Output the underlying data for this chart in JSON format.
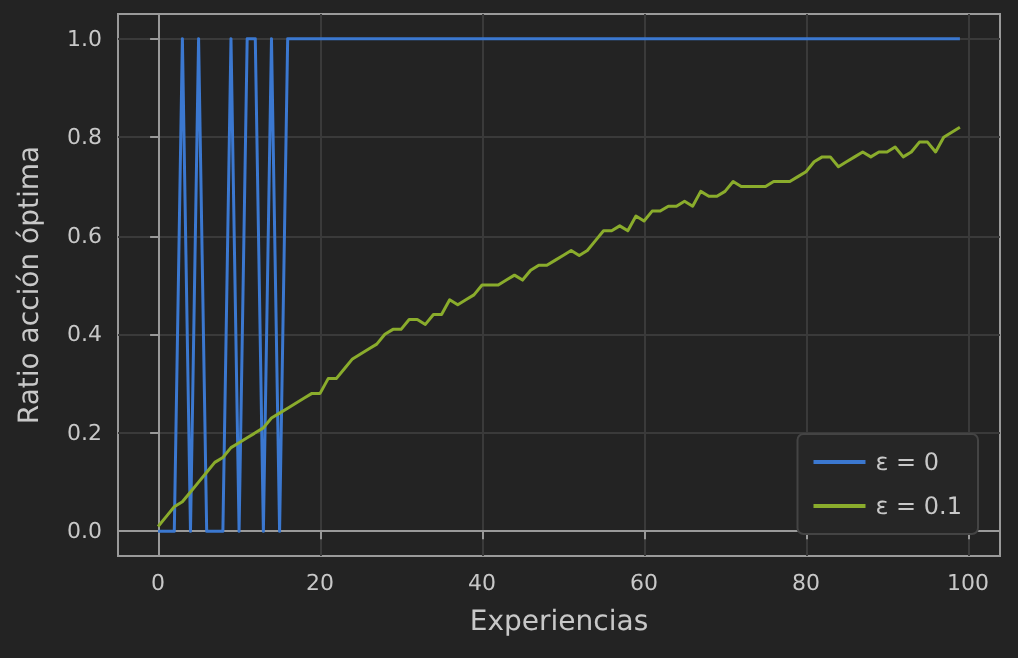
{
  "chart_data": {
    "type": "line",
    "xlabel": "Experiencias",
    "ylabel": "Ratio acción óptima",
    "x": [
      0,
      1,
      2,
      3,
      4,
      5,
      6,
      7,
      8,
      9,
      10,
      11,
      12,
      13,
      14,
      15,
      16,
      17,
      18,
      19,
      20,
      21,
      22,
      23,
      24,
      25,
      26,
      27,
      28,
      29,
      30,
      31,
      32,
      33,
      34,
      35,
      36,
      37,
      38,
      39,
      40,
      41,
      42,
      43,
      44,
      45,
      46,
      47,
      48,
      49,
      50,
      51,
      52,
      53,
      54,
      55,
      56,
      57,
      58,
      59,
      60,
      61,
      62,
      63,
      64,
      65,
      66,
      67,
      68,
      69,
      70,
      71,
      72,
      73,
      74,
      75,
      76,
      77,
      78,
      79,
      80,
      81,
      82,
      83,
      84,
      85,
      86,
      87,
      88,
      89,
      90,
      91,
      92,
      93,
      94,
      95,
      96,
      97,
      98,
      99
    ],
    "series": [
      {
        "name": "ε = 0",
        "color": "#3b78d0",
        "values": [
          0,
          0,
          0,
          1,
          0,
          1,
          0,
          0,
          0,
          1,
          0,
          1,
          1,
          0,
          1,
          0,
          1,
          1,
          1,
          1,
          1,
          1,
          1,
          1,
          1,
          1,
          1,
          1,
          1,
          1,
          1,
          1,
          1,
          1,
          1,
          1,
          1,
          1,
          1,
          1,
          1,
          1,
          1,
          1,
          1,
          1,
          1,
          1,
          1,
          1,
          1,
          1,
          1,
          1,
          1,
          1,
          1,
          1,
          1,
          1,
          1,
          1,
          1,
          1,
          1,
          1,
          1,
          1,
          1,
          1,
          1,
          1,
          1,
          1,
          1,
          1,
          1,
          1,
          1,
          1,
          1,
          1,
          1,
          1,
          1,
          1,
          1,
          1,
          1,
          1,
          1,
          1,
          1,
          1,
          1,
          1,
          1,
          1,
          1,
          1
        ]
      },
      {
        "name": "ε = 0.1",
        "color": "#8aac2c",
        "values": [
          0.01,
          0.03,
          0.05,
          0.06,
          0.08,
          0.1,
          0.12,
          0.14,
          0.15,
          0.17,
          0.18,
          0.19,
          0.2,
          0.21,
          0.23,
          0.24,
          0.25,
          0.26,
          0.27,
          0.28,
          0.28,
          0.31,
          0.31,
          0.33,
          0.35,
          0.36,
          0.37,
          0.38,
          0.4,
          0.41,
          0.41,
          0.43,
          0.43,
          0.42,
          0.44,
          0.44,
          0.47,
          0.46,
          0.47,
          0.48,
          0.5,
          0.5,
          0.5,
          0.51,
          0.52,
          0.51,
          0.53,
          0.54,
          0.54,
          0.55,
          0.56,
          0.57,
          0.56,
          0.57,
          0.59,
          0.61,
          0.61,
          0.62,
          0.61,
          0.64,
          0.63,
          0.65,
          0.65,
          0.66,
          0.66,
          0.67,
          0.66,
          0.69,
          0.68,
          0.68,
          0.69,
          0.71,
          0.7,
          0.7,
          0.7,
          0.7,
          0.71,
          0.71,
          0.71,
          0.72,
          0.73,
          0.75,
          0.76,
          0.76,
          0.74,
          0.75,
          0.76,
          0.77,
          0.76,
          0.77,
          0.77,
          0.78,
          0.76,
          0.77,
          0.79,
          0.79,
          0.77,
          0.8,
          0.81,
          0.82
        ]
      }
    ],
    "xlim": [
      -4.95,
      103.95
    ],
    "xticks": [
      0,
      20,
      40,
      60,
      80,
      100
    ],
    "ylim": [
      -0.05,
      1.05
    ],
    "yticks": [
      {
        "value": 0,
        "label": "0.0"
      },
      {
        "value": 0.2,
        "label": "0.2"
      },
      {
        "value": 0.4,
        "label": "0.4"
      },
      {
        "value": 0.6,
        "label": "0.6"
      },
      {
        "value": 0.8,
        "label": "0.8"
      },
      {
        "value": 1,
        "label": "1.0"
      }
    ],
    "grid": true,
    "legend": "bottom right"
  }
}
